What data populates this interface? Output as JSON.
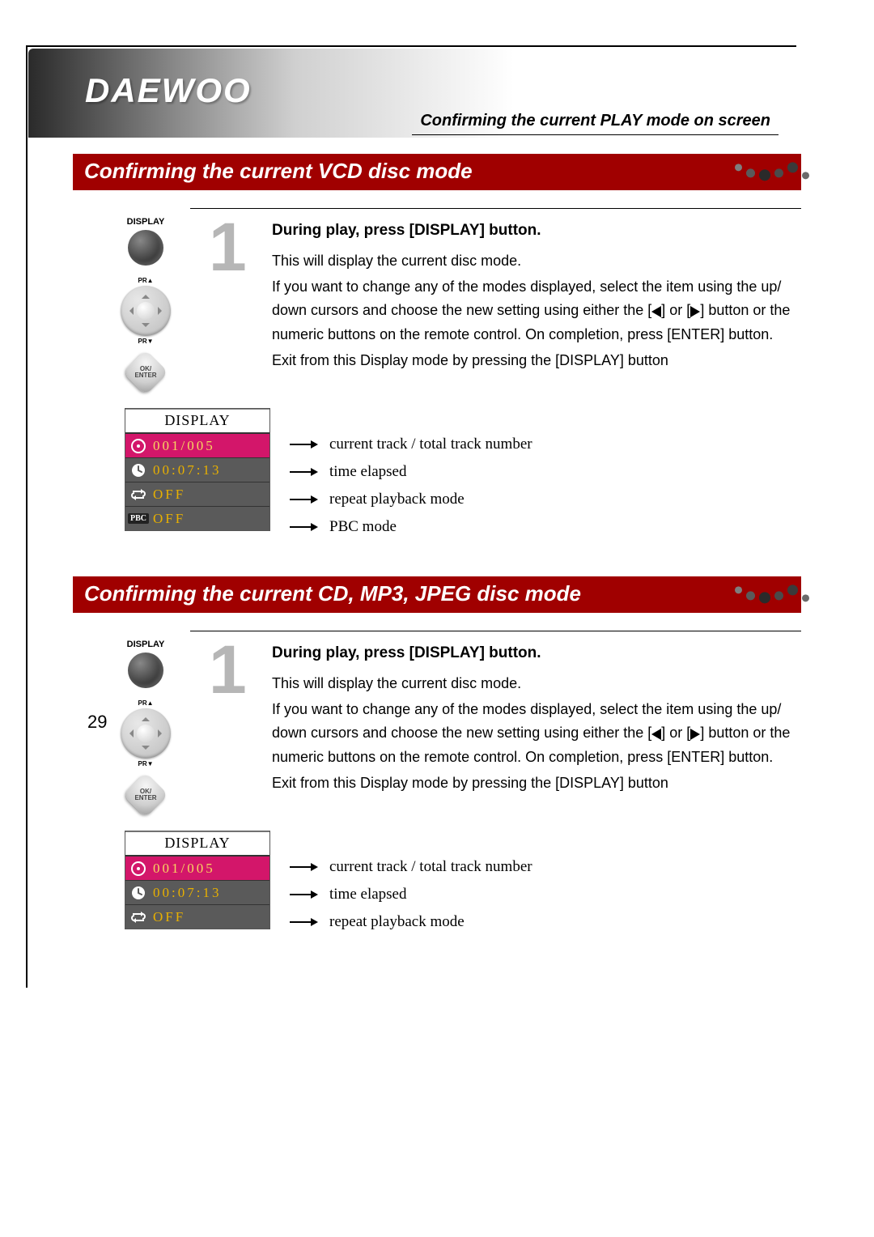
{
  "brand": "DAEWOO",
  "page_number": "29",
  "top_caption": "Confirming the current PLAY mode on screen",
  "colors": {
    "section_bar_bg": "#a00000",
    "section_bar_text": "#ffffff",
    "osd_selected_bg": "#d3166a",
    "osd_row_bg": "#5a5a5a",
    "osd_value_color": "#e8b000",
    "step_num_color": "#b6b6b6"
  },
  "sections": [
    {
      "title": "Confirming the current VCD disc mode",
      "step_number": "1",
      "step_heading": "During play, press [DISPLAY] button.",
      "step_body_1": "This will display the current disc mode.",
      "step_body_2a": "If you want to change any of the modes displayed, select the item using the up/ down cursors and choose the new setting using either the [",
      "step_body_2b": "] or [",
      "step_body_2c": "] button or the numeric buttons on the remote control. On completion, press [ENTER] button.",
      "step_body_3": "Exit from this Display mode by pressing the [DISPLAY] button",
      "remote_display_label": "DISPLAY",
      "remote_pr_up": "PR▲",
      "remote_pr_dn": "PR▼",
      "remote_enter": "OK/\nENTER",
      "osd": {
        "title": "DISPLAY",
        "rows": [
          {
            "icon": "disc",
            "value": "001/005",
            "selected": true,
            "legend": "current track / total track number"
          },
          {
            "icon": "clock",
            "value": "00:07:13",
            "selected": false,
            "legend": "time elapsed"
          },
          {
            "icon": "repeat",
            "value": "OFF",
            "selected": false,
            "legend": "repeat playback mode"
          },
          {
            "icon": "pbc",
            "value": "OFF",
            "selected": false,
            "legend": "PBC mode"
          }
        ]
      }
    },
    {
      "title": "Confirming the current CD, MP3, JPEG disc mode",
      "step_number": "1",
      "step_heading": "During play, press [DISPLAY] button.",
      "step_body_1": "This will display the current disc mode.",
      "step_body_2a": "If you want to change any of the modes displayed, select the item using the up/ down cursors and choose the new setting using either the [",
      "step_body_2b": "] or [",
      "step_body_2c": "] button or the numeric buttons on the remote control. On completion, press [ENTER] button.",
      "step_body_3": "Exit from this Display mode by pressing the [DISPLAY] button",
      "remote_display_label": "DISPLAY",
      "remote_pr_up": "PR▲",
      "remote_pr_dn": "PR▼",
      "remote_enter": "OK/\nENTER",
      "osd": {
        "title": "DISPLAY",
        "rows": [
          {
            "icon": "disc",
            "value": "001/005",
            "selected": true,
            "legend": "current track / total track number"
          },
          {
            "icon": "clock",
            "value": "00:07:13",
            "selected": false,
            "legend": "time elapsed"
          },
          {
            "icon": "repeat",
            "value": "OFF",
            "selected": false,
            "legend": "repeat playback mode"
          }
        ]
      }
    }
  ]
}
